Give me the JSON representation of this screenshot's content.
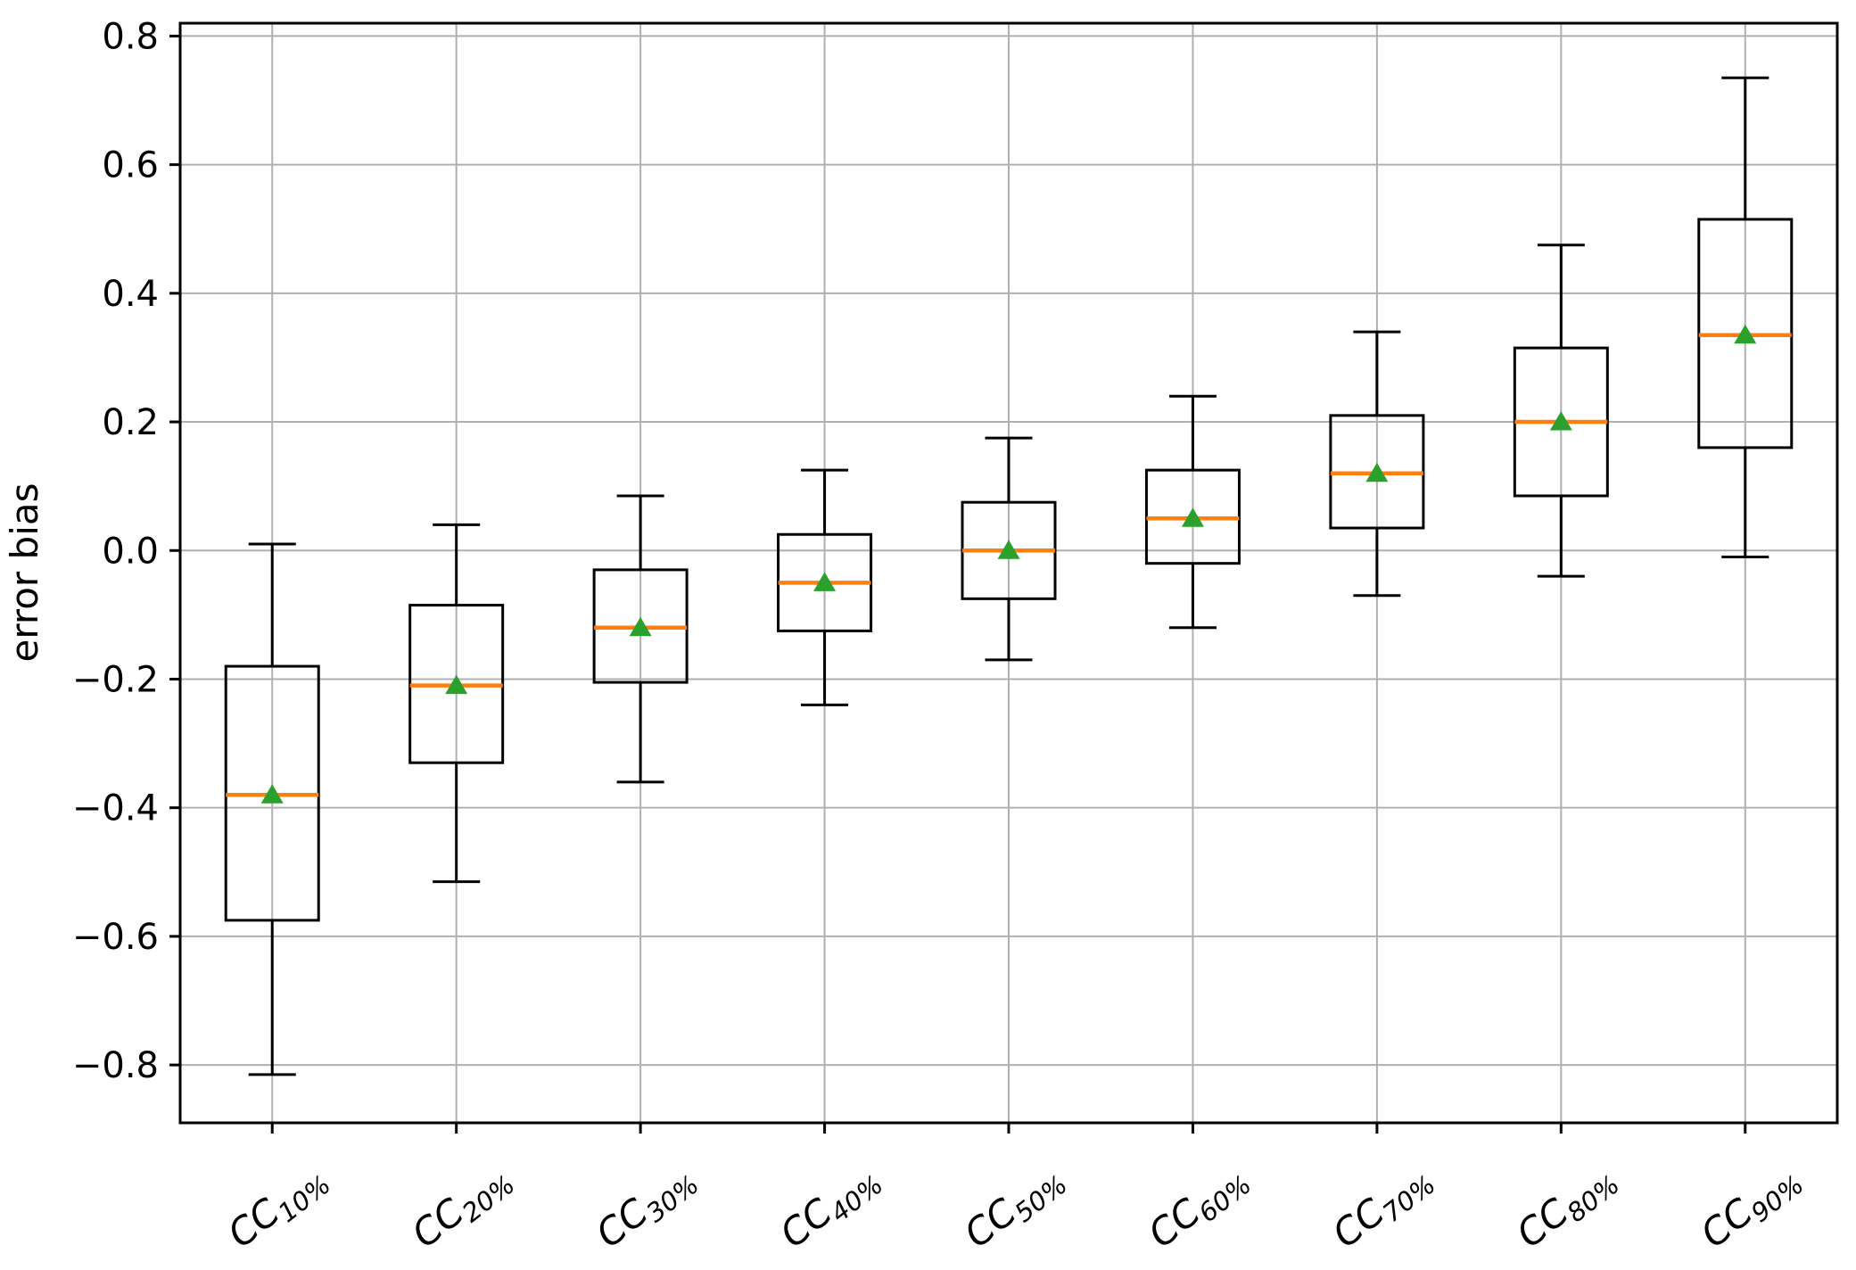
{
  "chart_data": {
    "type": "boxplot",
    "title": "",
    "xlabel": "",
    "ylabel": "error bias",
    "grid": true,
    "legend": "none",
    "ylim": [
      -0.89,
      0.82
    ],
    "yticks": [
      0.8,
      0.6,
      0.4,
      0.2,
      0.0,
      -0.2,
      -0.4,
      -0.6,
      -0.8
    ],
    "categories": [
      {
        "base": "CC",
        "sub": "10%"
      },
      {
        "base": "CC",
        "sub": "20%"
      },
      {
        "base": "CC",
        "sub": "30%"
      },
      {
        "base": "CC",
        "sub": "40%"
      },
      {
        "base": "CC",
        "sub": "50%"
      },
      {
        "base": "CC",
        "sub": "60%"
      },
      {
        "base": "CC",
        "sub": "70%"
      },
      {
        "base": "CC",
        "sub": "80%"
      },
      {
        "base": "CC",
        "sub": "90%"
      }
    ],
    "series": [
      {
        "label": "CC10%",
        "whislo": -0.815,
        "q1": -0.575,
        "med": -0.38,
        "q3": -0.18,
        "whishi": 0.01,
        "mean": -0.38
      },
      {
        "label": "CC20%",
        "whislo": -0.515,
        "q1": -0.33,
        "med": -0.21,
        "q3": -0.085,
        "whishi": 0.04,
        "mean": -0.21
      },
      {
        "label": "CC30%",
        "whislo": -0.36,
        "q1": -0.205,
        "med": -0.12,
        "q3": -0.03,
        "whishi": 0.085,
        "mean": -0.12
      },
      {
        "label": "CC40%",
        "whislo": -0.24,
        "q1": -0.125,
        "med": -0.05,
        "q3": 0.025,
        "whishi": 0.125,
        "mean": -0.05
      },
      {
        "label": "CC50%",
        "whislo": -0.17,
        "q1": -0.075,
        "med": 0.0,
        "q3": 0.075,
        "whishi": 0.175,
        "mean": 0.0
      },
      {
        "label": "CC60%",
        "whislo": -0.12,
        "q1": -0.02,
        "med": 0.05,
        "q3": 0.125,
        "whishi": 0.24,
        "mean": 0.05
      },
      {
        "label": "CC70%",
        "whislo": -0.07,
        "q1": 0.035,
        "med": 0.12,
        "q3": 0.21,
        "whishi": 0.34,
        "mean": 0.12
      },
      {
        "label": "CC80%",
        "whislo": -0.04,
        "q1": 0.085,
        "med": 0.2,
        "q3": 0.315,
        "whishi": 0.475,
        "mean": 0.2
      },
      {
        "label": "CC90%",
        "whislo": -0.01,
        "q1": 0.16,
        "med": 0.335,
        "q3": 0.515,
        "whishi": 0.735,
        "mean": 0.335
      }
    ],
    "colors": {
      "box": "#000000",
      "whisker": "#000000",
      "median": "#ff7f0e",
      "mean": "#2ca02c",
      "grid": "#b0b0b0",
      "spine": "#000000",
      "text": "#000000",
      "background": "#ffffff"
    }
  }
}
